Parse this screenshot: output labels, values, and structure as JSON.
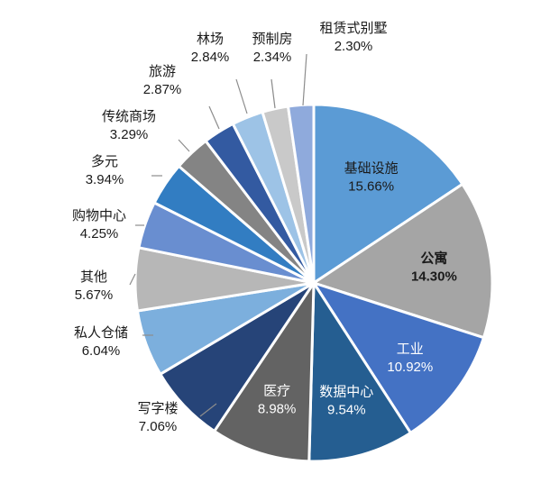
{
  "chart_data": {
    "type": "pie",
    "start_angle_deg": 0,
    "direction": "clockwise",
    "legend": "none",
    "slices": [
      {
        "label": "基础设施",
        "value": 15.66,
        "display": "15.66%",
        "color": "#5b9bd5",
        "label_pos": "inside",
        "text": "dark"
      },
      {
        "label": "公寓",
        "value": 14.3,
        "display": "14.30%",
        "color": "#a5a5a5",
        "label_pos": "inside",
        "text": "dark",
        "bold": true
      },
      {
        "label": "工业",
        "value": 10.92,
        "display": "10.92%",
        "color": "#4472c4",
        "label_pos": "inside",
        "text": "light"
      },
      {
        "label": "数据中心",
        "value": 9.54,
        "display": "9.54%",
        "color": "#255e91",
        "label_pos": "inside",
        "text": "light"
      },
      {
        "label": "医疗",
        "value": 8.98,
        "display": "8.98%",
        "color": "#636363",
        "label_pos": "inside",
        "text": "light"
      },
      {
        "label": "写字楼",
        "value": 7.06,
        "display": "7.06%",
        "color": "#264478",
        "label_pos": "outside",
        "text": "dark"
      },
      {
        "label": "私人仓储",
        "value": 6.04,
        "display": "6.04%",
        "color": "#7cafdd",
        "label_pos": "outside",
        "text": "dark"
      },
      {
        "label": "其他",
        "value": 5.67,
        "display": "5.67%",
        "color": "#b7b7b7",
        "label_pos": "outside",
        "text": "dark"
      },
      {
        "label": "购物中心",
        "value": 4.25,
        "display": "4.25%",
        "color": "#698ed0",
        "label_pos": "outside",
        "text": "dark"
      },
      {
        "label": "多元",
        "value": 3.94,
        "display": "3.94%",
        "color": "#327dc2",
        "label_pos": "outside",
        "text": "dark"
      },
      {
        "label": "传统商场",
        "value": 3.29,
        "display": "3.29%",
        "color": "#848484",
        "label_pos": "outside",
        "text": "dark"
      },
      {
        "label": "旅游",
        "value": 2.87,
        "display": "2.87%",
        "color": "#335aa1",
        "label_pos": "outside",
        "text": "dark"
      },
      {
        "label": "林场",
        "value": 2.84,
        "display": "2.84%",
        "color": "#9dc3e6",
        "label_pos": "outside",
        "text": "dark"
      },
      {
        "label": "预制房",
        "value": 2.34,
        "display": "2.34%",
        "color": "#c9c9c9",
        "label_pos": "outside",
        "text": "dark"
      },
      {
        "label": "租赁式别墅",
        "value": 2.3,
        "display": "2.30%",
        "color": "#8faadc",
        "label_pos": "outside",
        "text": "dark"
      }
    ]
  }
}
